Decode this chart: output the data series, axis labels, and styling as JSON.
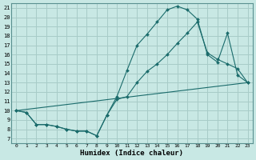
{
  "xlabel": "Humidex (Indice chaleur)",
  "bg_color": "#c8e8e4",
  "grid_color": "#a8ccc8",
  "line_color": "#1a6b6b",
  "xlim": [
    -0.5,
    23.5
  ],
  "ylim": [
    6.5,
    21.5
  ],
  "xticks": [
    0,
    1,
    2,
    3,
    4,
    5,
    6,
    7,
    8,
    9,
    10,
    11,
    12,
    13,
    14,
    15,
    16,
    17,
    18,
    19,
    20,
    21,
    22,
    23
  ],
  "yticks": [
    7,
    8,
    9,
    10,
    11,
    12,
    13,
    14,
    15,
    16,
    17,
    18,
    19,
    20,
    21
  ],
  "series": [
    {
      "x": [
        0,
        1,
        2,
        3,
        4,
        5,
        6,
        7,
        8,
        9,
        10,
        11,
        12,
        13,
        14,
        15,
        16,
        17,
        18,
        19,
        20,
        21,
        22,
        23
      ],
      "y": [
        10.0,
        9.8,
        8.5,
        8.5,
        8.3,
        8.0,
        7.8,
        7.8,
        7.3,
        9.5,
        11.5,
        14.3,
        17.0,
        18.2,
        19.5,
        20.8,
        21.2,
        20.8,
        19.8,
        16.0,
        15.2,
        18.3,
        13.8,
        13.0
      ],
      "has_markers": true
    },
    {
      "x": [
        0,
        1,
        2,
        3,
        4,
        5,
        6,
        7,
        8,
        9,
        10,
        11,
        12,
        13,
        14,
        15,
        16,
        17,
        18,
        19,
        20,
        21,
        22,
        23
      ],
      "y": [
        10.0,
        9.8,
        8.5,
        8.5,
        8.3,
        8.0,
        7.8,
        7.8,
        7.3,
        9.5,
        11.2,
        11.5,
        13.0,
        14.2,
        15.0,
        16.0,
        17.2,
        18.3,
        19.5,
        16.2,
        15.5,
        15.0,
        14.5,
        13.0
      ],
      "has_markers": true
    },
    {
      "x": [
        0,
        23
      ],
      "y": [
        10.0,
        13.0
      ],
      "has_markers": false
    }
  ]
}
